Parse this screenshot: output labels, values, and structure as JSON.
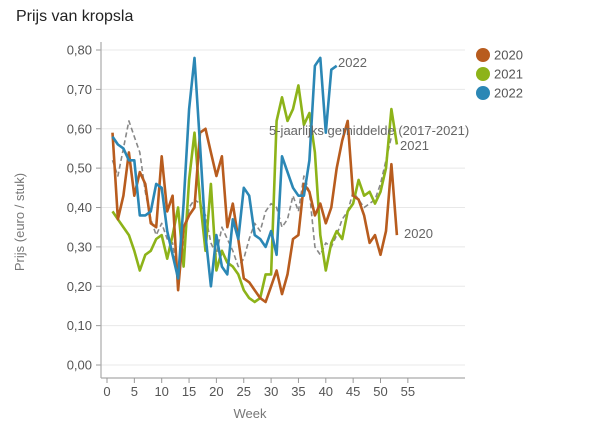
{
  "chart_data": {
    "type": "line",
    "title": "Prijs van kropsla",
    "xlabel": "Week",
    "ylabel": "Prijs (euro / stuk)",
    "xlim": [
      0,
      65
    ],
    "ylim": [
      0,
      0.8
    ],
    "xticks": [
      0,
      5,
      10,
      15,
      20,
      25,
      30,
      35,
      40,
      45,
      50,
      55
    ],
    "yticks": [
      {
        "value": 0,
        "label": "0,00"
      },
      {
        "value": 0.1,
        "label": "0,10"
      },
      {
        "value": 0.2,
        "label": "0,20"
      },
      {
        "value": 0.3,
        "label": "0,30"
      },
      {
        "value": 0.4,
        "label": "0,40"
      },
      {
        "value": 0.5,
        "label": "0,50"
      },
      {
        "value": 0.6,
        "label": "0,60"
      },
      {
        "value": 0.7,
        "label": "0,70"
      },
      {
        "value": 0.8,
        "label": "0,80"
      }
    ],
    "grid": "horizontal",
    "legend_position": "right",
    "series": [
      {
        "name": "2020",
        "color": "#b85c1e",
        "dashed": false,
        "end_label": "2020",
        "x": [
          1,
          2,
          3,
          4,
          5,
          6,
          7,
          8,
          9,
          10,
          11,
          12,
          13,
          14,
          15,
          16,
          17,
          18,
          19,
          20,
          21,
          22,
          23,
          24,
          25,
          26,
          27,
          28,
          29,
          30,
          31,
          32,
          33,
          34,
          35,
          36,
          37,
          38,
          39,
          40,
          41,
          42,
          43,
          44,
          45,
          46,
          47,
          48,
          49,
          50,
          51,
          52,
          53
        ],
        "values": [
          0.59,
          0.37,
          0.43,
          0.54,
          0.43,
          0.49,
          0.46,
          0.36,
          0.35,
          0.53,
          0.39,
          0.43,
          0.19,
          0.35,
          0.38,
          0.4,
          0.59,
          0.6,
          0.54,
          0.48,
          0.53,
          0.35,
          0.41,
          0.32,
          0.22,
          0.21,
          0.19,
          0.17,
          0.16,
          0.2,
          0.24,
          0.18,
          0.23,
          0.32,
          0.33,
          0.46,
          0.44,
          0.38,
          0.41,
          0.36,
          0.4,
          0.5,
          0.57,
          0.62,
          0.43,
          0.42,
          0.38,
          0.31,
          0.33,
          0.28,
          0.34,
          0.51,
          0.33
        ]
      },
      {
        "name": "2021",
        "color": "#8db319",
        "dashed": false,
        "end_label": "2021",
        "x": [
          1,
          2,
          3,
          4,
          5,
          6,
          7,
          8,
          9,
          10,
          11,
          12,
          13,
          14,
          15,
          16,
          17,
          18,
          19,
          20,
          21,
          22,
          23,
          24,
          25,
          26,
          27,
          28,
          29,
          30,
          31,
          32,
          33,
          34,
          35,
          36,
          37,
          38,
          39,
          40,
          41,
          42,
          43,
          44,
          45,
          46,
          47,
          48,
          49,
          50,
          51,
          52,
          53
        ],
        "values": [
          0.39,
          0.37,
          0.35,
          0.33,
          0.29,
          0.24,
          0.28,
          0.29,
          0.32,
          0.33,
          0.27,
          0.33,
          0.4,
          0.25,
          0.47,
          0.59,
          0.42,
          0.29,
          0.46,
          0.24,
          0.29,
          0.26,
          0.25,
          0.23,
          0.19,
          0.17,
          0.16,
          0.17,
          0.23,
          0.23,
          0.62,
          0.68,
          0.62,
          0.65,
          0.71,
          0.61,
          0.64,
          0.54,
          0.33,
          0.24,
          0.31,
          0.34,
          0.32,
          0.39,
          0.41,
          0.47,
          0.43,
          0.44,
          0.41,
          0.44,
          0.5,
          0.65,
          0.56
        ]
      },
      {
        "name": "2022",
        "color": "#2b87b5",
        "dashed": false,
        "end_label": "2022",
        "x": [
          1,
          2,
          3,
          4,
          5,
          6,
          7,
          8,
          9,
          10,
          11,
          12,
          13,
          14,
          15,
          16,
          17,
          18,
          19,
          20,
          21,
          22,
          23,
          24,
          25,
          26,
          27,
          28,
          29,
          30,
          31,
          32,
          33,
          34,
          35,
          36,
          37,
          38,
          39,
          40,
          41,
          42
        ],
        "values": [
          0.58,
          0.56,
          0.55,
          0.52,
          0.52,
          0.38,
          0.38,
          0.39,
          0.46,
          0.45,
          0.34,
          0.28,
          0.22,
          0.41,
          0.65,
          0.78,
          0.56,
          0.33,
          0.2,
          0.33,
          0.25,
          0.23,
          0.37,
          0.32,
          0.45,
          0.43,
          0.33,
          0.32,
          0.3,
          0.34,
          0.28,
          0.53,
          0.49,
          0.45,
          0.43,
          0.43,
          0.52,
          0.76,
          0.78,
          0.59,
          0.75,
          0.76
        ]
      },
      {
        "name": "5-jaarlijks gemiddelde (2017-2021)",
        "color": "#888888",
        "dashed": true,
        "end_label": "5-jaarlijks gemiddelde (2017-2021)",
        "x": [
          1,
          2,
          3,
          4,
          5,
          6,
          7,
          8,
          9,
          10,
          11,
          12,
          13,
          14,
          15,
          16,
          17,
          18,
          19,
          20,
          21,
          22,
          23,
          24,
          25,
          26,
          27,
          28,
          29,
          30,
          31,
          32,
          33,
          34,
          35,
          36,
          37,
          38,
          39,
          40,
          41,
          42,
          43,
          44,
          45,
          46,
          47,
          48,
          49,
          50,
          51,
          52
        ],
        "values": [
          0.52,
          0.48,
          0.55,
          0.62,
          0.58,
          0.54,
          0.44,
          0.37,
          0.33,
          0.36,
          0.32,
          0.31,
          0.22,
          0.3,
          0.4,
          0.42,
          0.41,
          0.38,
          0.31,
          0.28,
          0.35,
          0.32,
          0.29,
          0.25,
          0.27,
          0.32,
          0.36,
          0.34,
          0.39,
          0.41,
          0.4,
          0.35,
          0.37,
          0.43,
          0.39,
          0.48,
          0.44,
          0.3,
          0.28,
          0.31,
          0.3,
          0.33,
          0.37,
          0.39,
          0.44,
          0.42,
          0.4,
          0.41,
          0.42,
          0.46,
          0.52,
          0.58
        ]
      }
    ],
    "legend": [
      {
        "label": "2020",
        "color": "#b85c1e"
      },
      {
        "label": "2021",
        "color": "#8db319"
      },
      {
        "label": "2022",
        "color": "#2b87b5"
      }
    ]
  }
}
